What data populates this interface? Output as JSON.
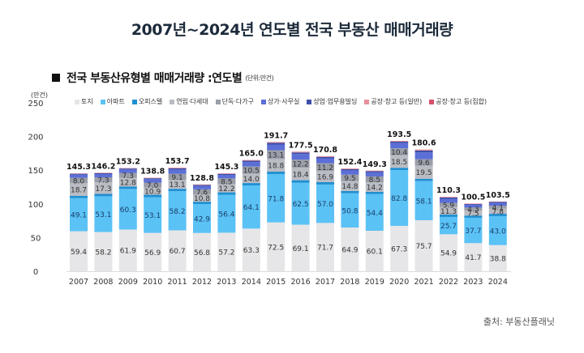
{
  "title": "2007년~2024년 연도별 전국 부동산 매매거래량",
  "subtitle": "전국 부동산유형별 매매거래량 :연도별",
  "subtitle_unit": "(단위:만건)",
  "source": "출처: 부동산플래닛",
  "chart_data": {
    "type": "bar",
    "stacked": true,
    "title": "전국 부동산유형별 매매거래량 :연도별",
    "ylabel": "(만건)",
    "xlabel": "",
    "ylim": [
      0,
      250
    ],
    "yticks": [
      0,
      50,
      100,
      150,
      200,
      250
    ],
    "grid": false,
    "legend_position": "top",
    "categories": [
      "2007",
      "2008",
      "2009",
      "2010",
      "2011",
      "2012",
      "2013",
      "2014",
      "2015",
      "2016",
      "2017",
      "2018",
      "2019",
      "2020",
      "2021",
      "2022",
      "2023",
      "2024"
    ],
    "legend": [
      {
        "name": "토지",
        "color": "#e6e6e8"
      },
      {
        "name": "아파트",
        "color": "#5bc2f5"
      },
      {
        "name": "오피스텔",
        "color": "#1f8fd1"
      },
      {
        "name": "연립·다세대",
        "color": "#b9bcc3"
      },
      {
        "name": "단독·다가구",
        "color": "#9a9ea8"
      },
      {
        "name": "상가·사무실",
        "color": "#5b6fd6"
      },
      {
        "name": "상업·업무용빌딩",
        "color": "#3d4fa8"
      },
      {
        "name": "공장·창고 등(일반)",
        "color": "#e8909c"
      },
      {
        "name": "공장·창고 등(집합)",
        "color": "#d4506a"
      }
    ],
    "series": [
      {
        "name": "토지",
        "values": [
          59.4,
          58.2,
          61.9,
          56.9,
          60.7,
          56.8,
          57.2,
          63.3,
          72.5,
          69.1,
          71.7,
          64.9,
          60.1,
          67.3,
          75.7,
          54.9,
          41.7,
          38.8
        ]
      },
      {
        "name": "아파트",
        "values": [
          49.1,
          53.1,
          60.3,
          53.1,
          58.2,
          42.9,
          56.4,
          64.1,
          71.8,
          62.5,
          57.0,
          50.8,
          54.4,
          82.8,
          58.1,
          25.7,
          37.7,
          43.0
        ]
      },
      {
        "name": "연립·다세대",
        "values": [
          18.7,
          17.3,
          12.8,
          10.9,
          13.1,
          10.8,
          12.2,
          14.0,
          18.8,
          18.4,
          16.9,
          14.8,
          14.2,
          18.5,
          19.5,
          11.3,
          7.5,
          7.8
        ]
      },
      {
        "name": "단독·다가구",
        "values": [
          8.0,
          7.3,
          7.3,
          7.0,
          9.1,
          7.6,
          8.5,
          10.5,
          13.1,
          12.2,
          11.2,
          9.5,
          8.5,
          10.4,
          9.6,
          5.9,
          4.3,
          4.1
        ]
      }
    ],
    "totals": [
      145.3,
      146.2,
      153.2,
      138.8,
      153.7,
      128.8,
      145.3,
      165.0,
      191.7,
      177.5,
      170.8,
      152.4,
      149.3,
      193.5,
      180.6,
      110.3,
      100.5,
      103.5
    ]
  }
}
